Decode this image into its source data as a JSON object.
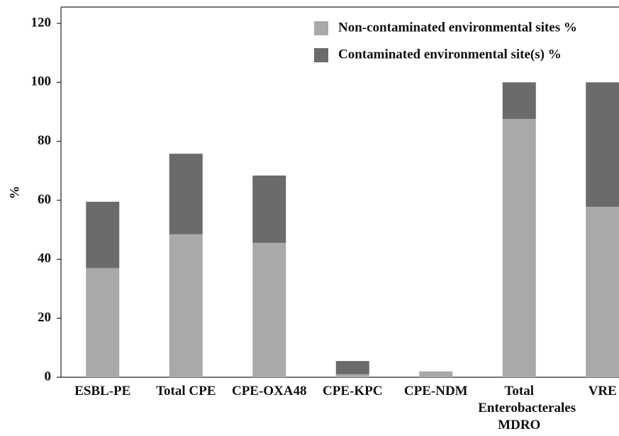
{
  "chart_data": {
    "type": "stacked_bar",
    "y_label": "%",
    "categories": [
      "ESBL-PE",
      "Total CPE",
      "CPE-OXA48",
      "CPE-KPC",
      "CPE-NDM",
      "Total Enterobacterales MDRO",
      "VRE"
    ],
    "series": [
      {
        "name": "Non-contaminated environmental sites %",
        "color": "#a9a9a9",
        "values": [
          37,
          48.5,
          45.6,
          1,
          2,
          87.6,
          57.8
        ]
      },
      {
        "name": "Contaminated environmental site(s) %",
        "color": "#6b6b6e",
        "values": [
          22.5,
          27.3,
          22.8,
          4.5,
          0,
          12.4,
          42.2
        ]
      }
    ],
    "ylim": [
      0,
      120
    ],
    "yticks": [
      0,
      20,
      40,
      60,
      80,
      100,
      120
    ]
  }
}
